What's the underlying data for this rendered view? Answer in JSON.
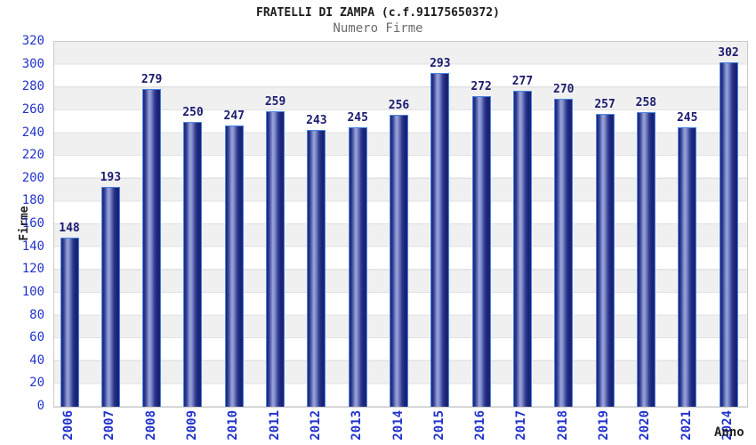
{
  "page": {
    "background": "#ffffff"
  },
  "chart_data": {
    "type": "bar",
    "title": "FRATELLI DI ZAMPA (c.f.91175650372)",
    "subtitle": "Numero Firme",
    "xlabel": "Anno",
    "ylabel": "Firme",
    "categories": [
      "2006",
      "2007",
      "2008",
      "2009",
      "2010",
      "2011",
      "2012",
      "2013",
      "2014",
      "2015",
      "2016",
      "2017",
      "2018",
      "2019",
      "2020",
      "2021",
      "2024"
    ],
    "values": [
      148,
      193,
      279,
      250,
      247,
      259,
      243,
      245,
      256,
      293,
      272,
      277,
      270,
      257,
      258,
      245,
      302
    ],
    "ylim": [
      0,
      320
    ],
    "ytick_step": 20,
    "grid": "horizontal-bands-alternating",
    "legend": "none",
    "value_labels_shown": true,
    "colors": {
      "bar_dark": "#1b2377",
      "bar_light": "#9aa5dc",
      "bar_border": "#4a86e0",
      "tick_label": "#2233cc",
      "value_label": "#1c1c70",
      "band_gray": "#f0f0f0",
      "grid_line": "#e2e2e2",
      "title": "#1c1c1c",
      "subtitle": "#6b6b6b",
      "axis_title": "#222222"
    }
  }
}
